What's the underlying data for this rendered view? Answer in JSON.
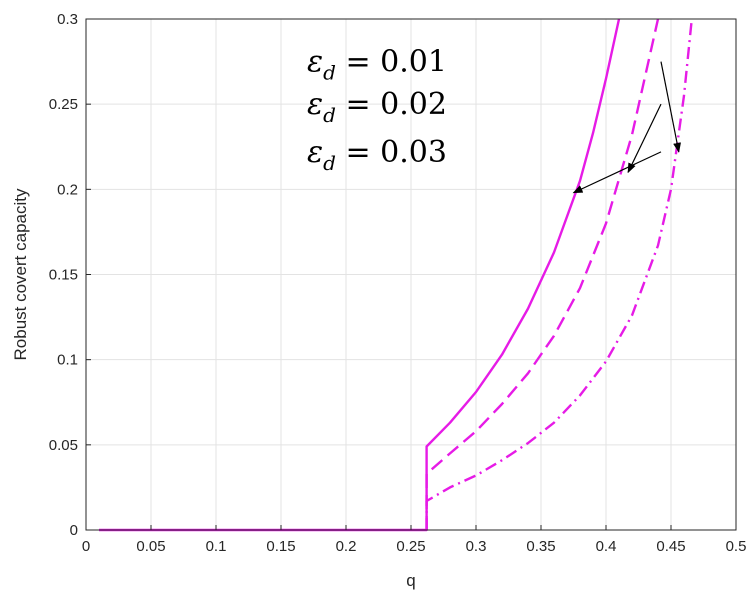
{
  "chart_data": {
    "type": "line",
    "xlabel": "q",
    "ylabel": "Robust covert capacity",
    "xlim": [
      0,
      0.5
    ],
    "ylim": [
      0,
      0.3
    ],
    "xticks": [
      "0",
      "0.05",
      "0.1",
      "0.15",
      "0.2",
      "0.25",
      "0.3",
      "0.35",
      "0.4",
      "0.45",
      "0.5"
    ],
    "yticks": [
      "0",
      "0.05",
      "0.1",
      "0.15",
      "0.2",
      "0.25",
      "0.3"
    ],
    "grid": true,
    "colors": {
      "series": "#e61be6",
      "grid": "#e3e3e3",
      "axis": "#262626",
      "arrow": "#000000"
    },
    "series": [
      {
        "dash": "solid",
        "x": [
          0.01,
          0.262,
          0.262,
          0.28,
          0.3,
          0.32,
          0.34,
          0.36,
          0.38,
          0.39,
          0.4,
          0.41
        ],
        "y": [
          0,
          0,
          0.049,
          0.063,
          0.081,
          0.103,
          0.13,
          0.163,
          0.205,
          0.233,
          0.265,
          0.3
        ]
      },
      {
        "dash": "dashed",
        "x": [
          0.262,
          0.262,
          0.28,
          0.3,
          0.32,
          0.34,
          0.36,
          0.38,
          0.4,
          0.42,
          0.43,
          0.44
        ],
        "y": [
          0,
          0.033,
          0.045,
          0.058,
          0.074,
          0.092,
          0.114,
          0.142,
          0.18,
          0.232,
          0.266,
          0.3
        ]
      },
      {
        "dash": "dashdot",
        "x": [
          0.262,
          0.262,
          0.28,
          0.3,
          0.32,
          0.34,
          0.36,
          0.38,
          0.4,
          0.42,
          0.44,
          0.45,
          0.46,
          0.466
        ],
        "y": [
          0,
          0.017,
          0.025,
          0.032,
          0.041,
          0.051,
          0.063,
          0.079,
          0.099,
          0.126,
          0.167,
          0.2,
          0.255,
          0.3
        ]
      }
    ],
    "annotations": [
      {
        "base": "ε",
        "sub": "d",
        "rest": " = 0.01",
        "arrow_from": [
          0.31,
          0.275
        ],
        "arrow_to": [
          0.456,
          0.222
        ]
      },
      {
        "base": "ε",
        "sub": "d",
        "rest": " = 0.02",
        "arrow_from": [
          0.31,
          0.25
        ],
        "arrow_to": [
          0.417,
          0.21
        ]
      },
      {
        "base": "ε",
        "sub": "d",
        "rest": " = 0.03",
        "arrow_from": [
          0.31,
          0.222
        ],
        "arrow_to": [
          0.375,
          0.198
        ]
      }
    ]
  }
}
